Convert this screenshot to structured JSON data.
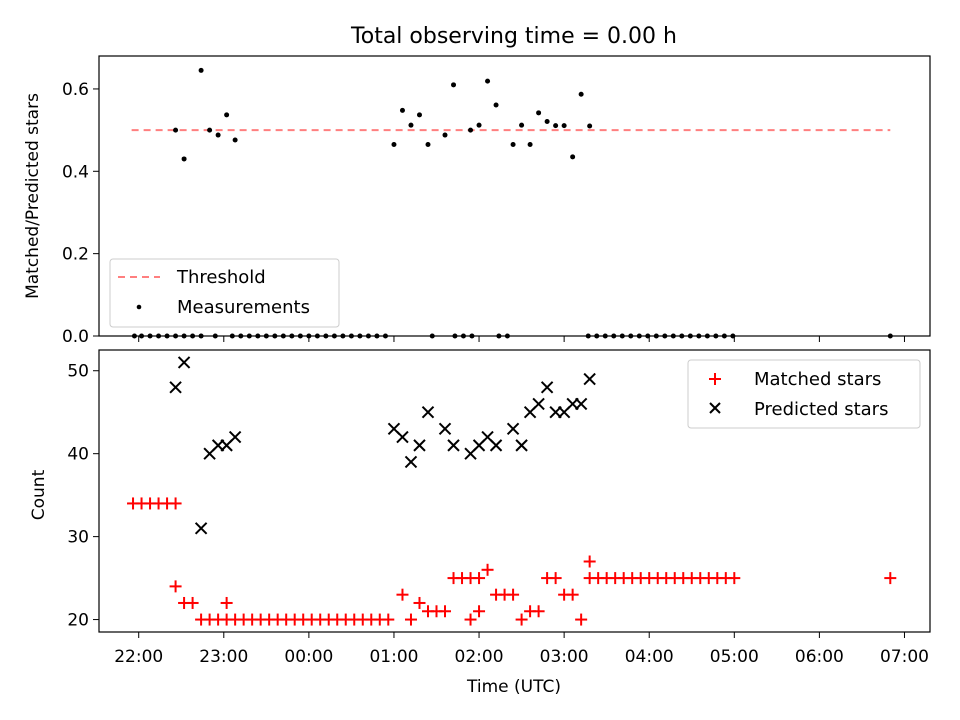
{
  "chart_data": [
    {
      "type": "scatter",
      "title": "Total observing time = 0.00 h",
      "ylabel": "Matched/Predicted stars",
      "xlim": [
        "21:32",
        "07:18"
      ],
      "ylim": [
        0,
        0.68
      ],
      "yticks": [
        0.0,
        0.2,
        0.4,
        0.6
      ],
      "yticklabels": [
        "0.0",
        "0.2",
        "0.4",
        "0.6"
      ],
      "threshold": {
        "name": "Threshold",
        "value": 0.5,
        "x_start": "21:55",
        "x_end": "06:50",
        "color": "#ff7f7f"
      },
      "legend_position": "lower-left",
      "series": [
        {
          "name": "Measurements",
          "color": "#000000",
          "points": [
            [
              "21:57",
              0
            ],
            [
              "22:02",
              0
            ],
            [
              "22:08",
              0
            ],
            [
              "22:14",
              0
            ],
            [
              "22:20",
              0
            ],
            [
              "22:26",
              0
            ],
            [
              "22:32",
              0
            ],
            [
              "22:38",
              0
            ],
            [
              "22:44",
              0
            ],
            [
              "22:54",
              0
            ],
            [
              "23:06",
              0
            ],
            [
              "23:12",
              0
            ],
            [
              "23:18",
              0
            ],
            [
              "23:24",
              0
            ],
            [
              "23:30",
              0
            ],
            [
              "23:36",
              0
            ],
            [
              "23:42",
              0
            ],
            [
              "23:48",
              0
            ],
            [
              "23:54",
              0
            ],
            [
              "00:00",
              0
            ],
            [
              "00:06",
              0
            ],
            [
              "00:12",
              0
            ],
            [
              "00:18",
              0
            ],
            [
              "00:24",
              0
            ],
            [
              "00:30",
              0
            ],
            [
              "00:36",
              0
            ],
            [
              "00:42",
              0
            ],
            [
              "00:48",
              0
            ],
            [
              "00:54",
              0
            ],
            [
              "01:27",
              0
            ],
            [
              "01:43",
              0
            ],
            [
              "01:49",
              0
            ],
            [
              "01:55",
              0
            ],
            [
              "02:14",
              0
            ],
            [
              "02:20",
              0
            ],
            [
              "03:17",
              0
            ],
            [
              "03:23",
              0
            ],
            [
              "03:29",
              0
            ],
            [
              "03:35",
              0
            ],
            [
              "03:41",
              0
            ],
            [
              "03:47",
              0
            ],
            [
              "03:53",
              0
            ],
            [
              "03:59",
              0
            ],
            [
              "04:05",
              0
            ],
            [
              "04:11",
              0
            ],
            [
              "04:17",
              0
            ],
            [
              "04:23",
              0
            ],
            [
              "04:29",
              0
            ],
            [
              "04:35",
              0
            ],
            [
              "04:41",
              0
            ],
            [
              "04:47",
              0
            ],
            [
              "04:53",
              0
            ],
            [
              "04:59",
              0
            ],
            [
              "06:50",
              0
            ],
            [
              "22:26",
              0.5
            ],
            [
              "22:32",
              0.43
            ],
            [
              "22:44",
              0.645
            ],
            [
              "22:50",
              0.5
            ],
            [
              "22:56",
              0.488
            ],
            [
              "23:02",
              0.537
            ],
            [
              "23:08",
              0.476
            ],
            [
              "01:00",
              0.465
            ],
            [
              "01:06",
              0.548
            ],
            [
              "01:12",
              0.512
            ],
            [
              "01:18",
              0.537
            ],
            [
              "01:24",
              0.465
            ],
            [
              "01:36",
              0.488
            ],
            [
              "01:42",
              0.61
            ],
            [
              "01:54",
              0.5
            ],
            [
              "02:00",
              0.512
            ],
            [
              "02:06",
              0.619
            ],
            [
              "02:12",
              0.561
            ],
            [
              "02:24",
              0.465
            ],
            [
              "02:30",
              0.512
            ],
            [
              "02:36",
              0.465
            ],
            [
              "02:42",
              0.542
            ],
            [
              "02:48",
              0.521
            ],
            [
              "02:54",
              0.511
            ],
            [
              "03:00",
              0.511
            ],
            [
              "03:06",
              0.435
            ],
            [
              "03:12",
              0.587
            ],
            [
              "03:18",
              0.51
            ]
          ]
        }
      ]
    },
    {
      "type": "scatter",
      "xlabel": "Time (UTC)",
      "ylabel": "Count",
      "xlim": [
        "21:32",
        "07:18"
      ],
      "ylim": [
        18.5,
        52.5
      ],
      "yticks": [
        20,
        30,
        40,
        50
      ],
      "yticklabels": [
        "20",
        "30",
        "40",
        "50"
      ],
      "xticklabels": [
        "22:00",
        "23:00",
        "00:00",
        "01:00",
        "02:00",
        "03:00",
        "04:00",
        "05:00",
        "06:00",
        "07:00"
      ],
      "legend_position": "upper-right",
      "series": [
        {
          "name": "Matched stars",
          "color": "#ff0000",
          "marker": "plus",
          "points": [
            [
              "21:56",
              34
            ],
            [
              "22:02",
              34
            ],
            [
              "22:08",
              34
            ],
            [
              "22:14",
              34
            ],
            [
              "22:20",
              34
            ],
            [
              "22:26",
              34
            ],
            [
              "22:26",
              24
            ],
            [
              "22:32",
              22
            ],
            [
              "22:38",
              22
            ],
            [
              "22:44",
              20
            ],
            [
              "22:50",
              20
            ],
            [
              "22:56",
              20
            ],
            [
              "23:02",
              20
            ],
            [
              "23:08",
              20
            ],
            [
              "23:02",
              22
            ],
            [
              "23:14",
              20
            ],
            [
              "23:20",
              20
            ],
            [
              "23:26",
              20
            ],
            [
              "23:32",
              20
            ],
            [
              "23:38",
              20
            ],
            [
              "23:44",
              20
            ],
            [
              "23:50",
              20
            ],
            [
              "23:56",
              20
            ],
            [
              "00:02",
              20
            ],
            [
              "00:08",
              20
            ],
            [
              "00:14",
              20
            ],
            [
              "00:20",
              20
            ],
            [
              "00:26",
              20
            ],
            [
              "00:32",
              20
            ],
            [
              "00:38",
              20
            ],
            [
              "00:44",
              20
            ],
            [
              "00:50",
              20
            ],
            [
              "00:56",
              20
            ],
            [
              "01:06",
              23
            ],
            [
              "01:12",
              20
            ],
            [
              "01:18",
              22
            ],
            [
              "01:24",
              21
            ],
            [
              "01:30",
              21
            ],
            [
              "01:36",
              21
            ],
            [
              "01:42",
              25
            ],
            [
              "01:48",
              25
            ],
            [
              "01:54",
              25
            ],
            [
              "02:00",
              25
            ],
            [
              "01:54",
              20
            ],
            [
              "02:00",
              21
            ],
            [
              "02:06",
              26
            ],
            [
              "02:12",
              23
            ],
            [
              "02:18",
              23
            ],
            [
              "02:24",
              23
            ],
            [
              "02:30",
              20
            ],
            [
              "02:36",
              21
            ],
            [
              "02:42",
              21
            ],
            [
              "02:48",
              25
            ],
            [
              "02:54",
              25
            ],
            [
              "03:00",
              23
            ],
            [
              "03:06",
              23
            ],
            [
              "03:12",
              20
            ],
            [
              "03:18",
              27
            ],
            [
              "03:18",
              25
            ],
            [
              "03:24",
              25
            ],
            [
              "03:30",
              25
            ],
            [
              "03:36",
              25
            ],
            [
              "03:42",
              25
            ],
            [
              "03:48",
              25
            ],
            [
              "03:54",
              25
            ],
            [
              "04:00",
              25
            ],
            [
              "04:06",
              25
            ],
            [
              "04:12",
              25
            ],
            [
              "04:18",
              25
            ],
            [
              "04:24",
              25
            ],
            [
              "04:30",
              25
            ],
            [
              "04:36",
              25
            ],
            [
              "04:42",
              25
            ],
            [
              "04:48",
              25
            ],
            [
              "04:54",
              25
            ],
            [
              "05:00",
              25
            ],
            [
              "06:50",
              25
            ]
          ]
        },
        {
          "name": "Predicted stars",
          "color": "#000000",
          "marker": "x",
          "points": [
            [
              "22:26",
              48
            ],
            [
              "22:32",
              51
            ],
            [
              "22:44",
              31
            ],
            [
              "22:50",
              40
            ],
            [
              "22:56",
              41
            ],
            [
              "23:02",
              41
            ],
            [
              "23:08",
              42
            ],
            [
              "01:00",
              43
            ],
            [
              "01:06",
              42
            ],
            [
              "01:12",
              39
            ],
            [
              "01:18",
              41
            ],
            [
              "01:24",
              45
            ],
            [
              "01:36",
              43
            ],
            [
              "01:42",
              41
            ],
            [
              "01:54",
              40
            ],
            [
              "02:00",
              41
            ],
            [
              "02:06",
              42
            ],
            [
              "02:12",
              41
            ],
            [
              "02:24",
              43
            ],
            [
              "02:30",
              41
            ],
            [
              "02:36",
              45
            ],
            [
              "02:42",
              46
            ],
            [
              "02:48",
              48
            ],
            [
              "02:54",
              45
            ],
            [
              "03:00",
              45
            ],
            [
              "03:06",
              46
            ],
            [
              "03:12",
              46
            ],
            [
              "03:18",
              49
            ]
          ]
        }
      ]
    }
  ]
}
